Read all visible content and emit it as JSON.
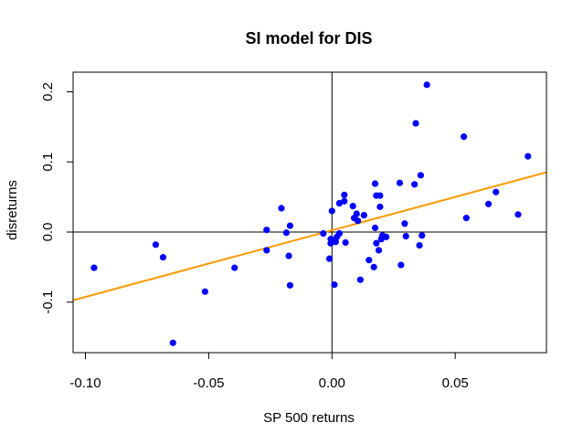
{
  "chart_data": {
    "type": "scatter",
    "title": "SI model for DIS",
    "xlabel": "SP 500 returns",
    "ylabel": "disreturns",
    "xlim": [
      -0.105,
      0.087
    ],
    "ylim": [
      -0.172,
      0.228
    ],
    "xticks": [
      -0.1,
      -0.05,
      0.0,
      0.05
    ],
    "xtick_labels": [
      "-0.10",
      "-0.05",
      "0.00",
      "0.05"
    ],
    "yticks": [
      -0.1,
      0.0,
      0.1,
      0.2
    ],
    "ytick_labels": [
      "-0.1",
      "0.0",
      "0.1",
      "0.2"
    ],
    "grid": false,
    "reference_lines": {
      "x": 0,
      "y": 0
    },
    "point_color": "#0000ff",
    "fit_color": "#ff9900",
    "fit_line": {
      "intercept": 0.0025,
      "slope": 0.95
    },
    "points": [
      {
        "x": -0.0965,
        "y": -0.051
      },
      {
        "x": -0.0715,
        "y": -0.018
      },
      {
        "x": -0.0685,
        "y": -0.036
      },
      {
        "x": -0.0645,
        "y": -0.158
      },
      {
        "x": -0.0515,
        "y": -0.085
      },
      {
        "x": -0.0395,
        "y": -0.051
      },
      {
        "x": -0.0265,
        "y": 0.003
      },
      {
        "x": -0.0265,
        "y": -0.026
      },
      {
        "x": -0.0205,
        "y": 0.034
      },
      {
        "x": -0.0185,
        "y": -0.001
      },
      {
        "x": -0.0175,
        "y": -0.034
      },
      {
        "x": -0.017,
        "y": 0.009
      },
      {
        "x": -0.017,
        "y": -0.076
      },
      {
        "x": -0.0035,
        "y": -0.002
      },
      {
        "x": -0.001,
        "y": -0.038
      },
      {
        "x": -0.0005,
        "y": -0.016
      },
      {
        "x": -0.0005,
        "y": -0.01
      },
      {
        "x": 0.0,
        "y": 0.03
      },
      {
        "x": 0.001,
        "y": -0.075
      },
      {
        "x": 0.0015,
        "y": -0.014
      },
      {
        "x": 0.002,
        "y": -0.007
      },
      {
        "x": 0.003,
        "y": -0.002
      },
      {
        "x": 0.003,
        "y": 0.041
      },
      {
        "x": 0.005,
        "y": 0.044
      },
      {
        "x": 0.005,
        "y": 0.053
      },
      {
        "x": 0.0055,
        "y": -0.015
      },
      {
        "x": 0.0085,
        "y": 0.037
      },
      {
        "x": 0.009,
        "y": 0.02
      },
      {
        "x": 0.01,
        "y": 0.026
      },
      {
        "x": 0.0105,
        "y": 0.016
      },
      {
        "x": 0.0115,
        "y": -0.068
      },
      {
        "x": 0.013,
        "y": 0.024
      },
      {
        "x": 0.015,
        "y": -0.04
      },
      {
        "x": 0.017,
        "y": -0.05
      },
      {
        "x": 0.0175,
        "y": 0.069
      },
      {
        "x": 0.0175,
        "y": 0.006
      },
      {
        "x": 0.018,
        "y": 0.052
      },
      {
        "x": 0.018,
        "y": -0.016
      },
      {
        "x": 0.019,
        "y": -0.026
      },
      {
        "x": 0.0195,
        "y": 0.052
      },
      {
        "x": 0.0195,
        "y": 0.036
      },
      {
        "x": 0.02,
        "y": -0.01
      },
      {
        "x": 0.0205,
        "y": -0.005
      },
      {
        "x": 0.022,
        "y": -0.007
      },
      {
        "x": 0.0275,
        "y": 0.07
      },
      {
        "x": 0.028,
        "y": -0.047
      },
      {
        "x": 0.0295,
        "y": 0.012
      },
      {
        "x": 0.03,
        "y": -0.006
      },
      {
        "x": 0.0335,
        "y": 0.068
      },
      {
        "x": 0.034,
        "y": 0.155
      },
      {
        "x": 0.0355,
        "y": -0.019
      },
      {
        "x": 0.036,
        "y": 0.081
      },
      {
        "x": 0.0365,
        "y": -0.005
      },
      {
        "x": 0.0385,
        "y": 0.21
      },
      {
        "x": 0.0535,
        "y": 0.136
      },
      {
        "x": 0.0545,
        "y": 0.02
      },
      {
        "x": 0.0635,
        "y": 0.04
      },
      {
        "x": 0.0665,
        "y": 0.057
      },
      {
        "x": 0.0755,
        "y": 0.025
      },
      {
        "x": 0.0795,
        "y": 0.108
      }
    ]
  }
}
